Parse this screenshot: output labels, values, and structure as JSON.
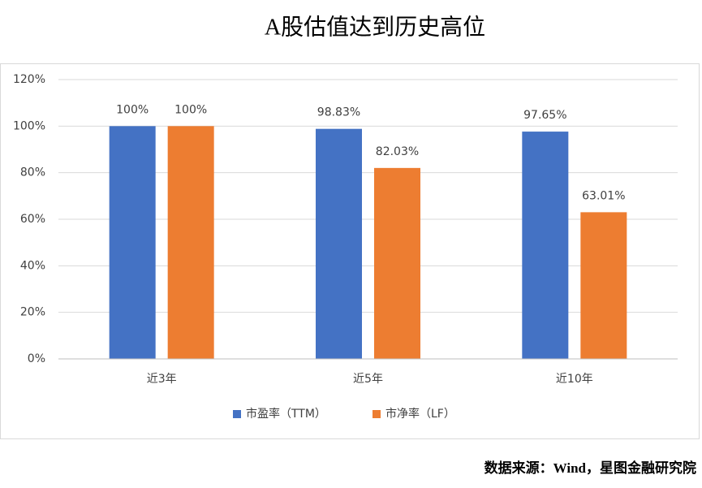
{
  "chart_data": {
    "type": "bar",
    "title": "A股估值达到历史高位",
    "categories": [
      "近3年",
      "近5年",
      "近10年"
    ],
    "series": [
      {
        "name": "市盈率（TTM）",
        "color": "#4472c4",
        "values": [
          100,
          98.83,
          97.65
        ],
        "value_labels": [
          "100%",
          "98.83%",
          "97.65%"
        ]
      },
      {
        "name": "市净率（LF）",
        "color": "#ed7d31",
        "values": [
          100,
          82.03,
          63.01
        ],
        "value_labels": [
          "100%",
          "82.03%",
          "63.01%"
        ]
      }
    ],
    "ylim": [
      0,
      120
    ],
    "yticks": [
      {
        "value": 0,
        "label": "0%"
      },
      {
        "value": 20,
        "label": "20%"
      },
      {
        "value": 40,
        "label": "40%"
      },
      {
        "value": 60,
        "label": "60%"
      },
      {
        "value": 80,
        "label": "80%"
      },
      {
        "value": 100,
        "label": "100%"
      },
      {
        "value": 120,
        "label": "120%"
      }
    ],
    "grid": true,
    "legend": "bottom",
    "source": "数据来源：Wind，星图金融研究院"
  }
}
